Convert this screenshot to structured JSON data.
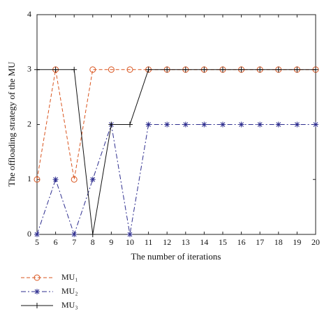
{
  "chart_data": {
    "type": "line",
    "x": [
      5,
      6,
      7,
      8,
      9,
      10,
      11,
      12,
      13,
      14,
      15,
      16,
      17,
      18,
      19,
      20
    ],
    "series": [
      {
        "name": "MU₁",
        "color": "#d9541e",
        "linestyle": "dashed",
        "marker": "circle",
        "values": [
          1,
          3,
          1,
          3,
          3,
          3,
          3,
          3,
          3,
          3,
          3,
          3,
          3,
          3,
          3,
          3
        ]
      },
      {
        "name": "MU₂",
        "color": "#2e2e8f",
        "linestyle": "dashdot",
        "marker": "asterisk",
        "values": [
          0,
          1,
          0,
          1,
          2,
          0,
          2,
          2,
          2,
          2,
          2,
          2,
          2,
          2,
          2,
          2
        ]
      },
      {
        "name": "MU₃",
        "color": "#111111",
        "linestyle": "solid",
        "marker": "plus",
        "values": [
          3,
          3,
          3,
          0,
          2,
          2,
          3,
          3,
          3,
          3,
          3,
          3,
          3,
          3,
          3,
          3
        ]
      }
    ],
    "xlabel": "The number of iterations",
    "ylabel": "The offloading strategy of the MU",
    "xlim": [
      5,
      20
    ],
    "xticks": [
      5,
      6,
      7,
      8,
      9,
      10,
      11,
      12,
      13,
      14,
      15,
      16,
      17,
      18,
      19,
      20
    ],
    "ylim": [
      0,
      4
    ],
    "yticks": [
      0,
      1,
      2,
      3,
      4
    ]
  }
}
